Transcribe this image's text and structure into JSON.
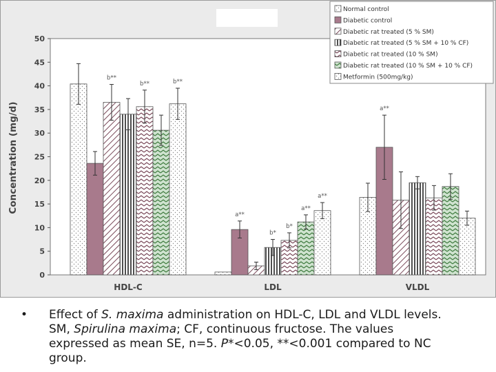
{
  "chart_data": {
    "type": "bar",
    "ylabel": "Concentration (mg/d)",
    "ylim": [
      0,
      50
    ],
    "yticks": [
      "0",
      "5",
      "10",
      "15",
      "20",
      "25",
      "30",
      "35",
      "40",
      "45",
      "50"
    ],
    "categories": [
      "HDL-C",
      "LDL",
      "VLDL"
    ],
    "series": [
      {
        "name": "Normal control",
        "values": [
          40.4,
          0.6,
          16.4
        ],
        "errors": [
          4.3,
          0,
          3.0
        ],
        "color": "#ffffff",
        "pattern": "dots"
      },
      {
        "name": "Diabetic control",
        "values": [
          23.6,
          9.6,
          27.0
        ],
        "errors": [
          2.5,
          1.8,
          6.8
        ],
        "color": "#a87a8c",
        "pattern": "solid"
      },
      {
        "name": "Diabetic rat treated (5 % SM)",
        "values": [
          36.5,
          1.9,
          15.8
        ],
        "errors": [
          3.8,
          0.8,
          6.0
        ],
        "color": "#ffffff",
        "pattern": "diag"
      },
      {
        "name": "Diabetic rat treated  (5 % SM + 10 % CF)",
        "values": [
          34.0,
          5.8,
          19.5
        ],
        "errors": [
          3.3,
          1.7,
          1.3
        ],
        "color": "#ffffff",
        "pattern": "vlines"
      },
      {
        "name": "Diabetic rat treated (10 % SM)",
        "values": [
          35.6,
          7.3,
          16.3
        ],
        "errors": [
          3.5,
          1.6,
          2.6
        ],
        "color": "#ffffff",
        "pattern": "zigzag"
      },
      {
        "name": "Diabetic rat treated (10 % SM + 10 % CF)",
        "values": [
          30.6,
          11.2,
          18.7
        ],
        "errors": [
          3.2,
          1.5,
          2.7
        ],
        "color": "#cfe3cf",
        "pattern": "zigzag-green"
      },
      {
        "name": "Metformin (500mg/kg)",
        "values": [
          36.2,
          13.6,
          12.0
        ],
        "errors": [
          3.3,
          1.7,
          1.5
        ],
        "color": "#ffffff",
        "pattern": "dots"
      }
    ],
    "annotations": [
      {
        "text": "b**",
        "category": 0,
        "series": 2
      },
      {
        "text": "b**",
        "category": 0,
        "series": 4
      },
      {
        "text": "b**",
        "category": 0,
        "series": 6
      },
      {
        "text": "a**",
        "category": 1,
        "series": 1
      },
      {
        "text": "b*",
        "category": 1,
        "series": 3
      },
      {
        "text": "b*",
        "category": 1,
        "series": 4
      },
      {
        "text": "a**",
        "category": 1,
        "series": 5
      },
      {
        "text": "a**",
        "category": 1,
        "series": 6
      },
      {
        "text": "a**",
        "category": 2,
        "series": 1
      }
    ]
  },
  "caption": {
    "bullet": "•",
    "line1_a": "Effect of ",
    "line1_b": "S. maxima",
    "line1_c": " administration on HDL-C, LDL and VLDL levels.",
    "line2_a": "SM, ",
    "line2_b": "Spirulina maxima",
    "line2_c": "; CF, continuous fructose. The values",
    "line3": "expressed as mean SE, n=5. ",
    "line3_b": "P",
    "line3_c": "*<0.05, **<0.001 compared to NC",
    "line4": "group."
  }
}
